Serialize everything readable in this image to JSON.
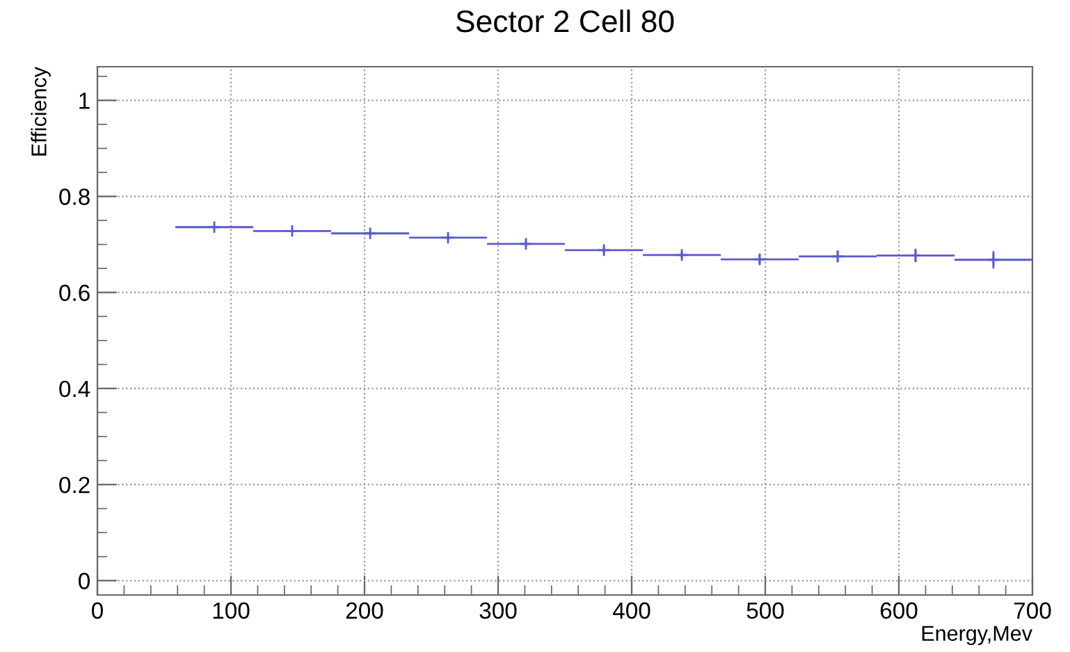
{
  "chart_data": {
    "type": "scatter",
    "title": "Sector 2 Cell 80",
    "xlabel": "Energy,Mev",
    "ylabel": "Efficiency",
    "x": [
      87.5,
      145.8,
      204.2,
      262.5,
      320.8,
      379.2,
      437.5,
      495.8,
      554.2,
      612.5,
      670.8
    ],
    "series": [
      {
        "color": "#5a5acd",
        "values": [
          0.736,
          0.728,
          0.723,
          0.714,
          0.701,
          0.688,
          0.678,
          0.669,
          0.675,
          0.677,
          0.668
        ],
        "errors": [
          0.003,
          0.003,
          0.004,
          0.005,
          0.005,
          0.006,
          0.007,
          0.01,
          0.012,
          0.014,
          0.018
        ],
        "xerrors": [
          29.17,
          29.17,
          29.17,
          29.17,
          29.17,
          29.17,
          29.17,
          29.17,
          29.17,
          29.17,
          29.17
        ]
      }
    ],
    "marker": "cross",
    "xlim": [
      0,
      700
    ],
    "xticks": [
      0,
      100,
      200,
      300,
      400,
      500,
      600,
      700
    ],
    "ylim": [
      -0.03,
      1.07
    ],
    "yticks": [
      0,
      0.2,
      0.4,
      0.6,
      0.8,
      1
    ],
    "grid": true,
    "legend": false
  }
}
